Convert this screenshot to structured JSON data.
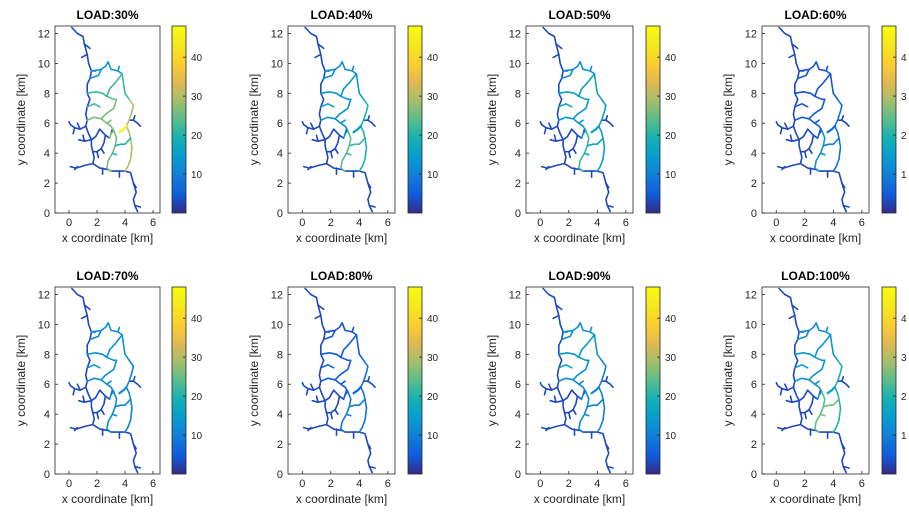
{
  "figure": {
    "background": "#ffffff",
    "colormap": "parula",
    "network_line_color_low": "#3b2f8f",
    "axis_color": "#262626"
  },
  "chart_data": [
    {
      "type": "heatmap",
      "title": "LOAD:30%",
      "xlabel": "x coordinate [km]",
      "ylabel": "y coordinate [km]",
      "xlim": [
        -1,
        6.5
      ],
      "ylim": [
        0,
        12.5
      ],
      "xticks": [
        0,
        2,
        4,
        6
      ],
      "yticks": [
        0,
        2,
        4,
        6,
        8,
        10,
        12
      ],
      "colorbar": {
        "min": 0,
        "max": 48,
        "ticks": [
          10,
          20,
          30,
          40
        ],
        "tick_labels": [
          "10",
          "20",
          "30",
          "40"
        ]
      },
      "segment_values": {
        "trunk": 3,
        "west_branches": 3,
        "east_tail": 3,
        "loop_upper": 14,
        "loop_middle": 22,
        "loop_lower": 26,
        "loop_east": 30,
        "loop_south": 26,
        "spur_south": 20,
        "hot_junction": 46
      }
    },
    {
      "type": "heatmap",
      "title": "LOAD:40%",
      "xlabel": "x coordinate [km]",
      "ylabel": "y coordinate [km]",
      "xlim": [
        -1,
        6.5
      ],
      "ylim": [
        0,
        12.5
      ],
      "xticks": [
        0,
        2,
        4,
        6
      ],
      "yticks": [
        0,
        2,
        4,
        6,
        8,
        10,
        12
      ],
      "colorbar": {
        "min": 0,
        "max": 48,
        "ticks": [
          10,
          20,
          30,
          40
        ],
        "tick_labels": [
          "10",
          "20",
          "30",
          "40"
        ]
      },
      "segment_values": {
        "trunk": 3,
        "west_branches": 3,
        "east_tail": 3,
        "loop_upper": 12,
        "loop_middle": 14,
        "loop_lower": 13,
        "loop_east": 20,
        "loop_south": 24,
        "spur_south": 22,
        "hot_junction": 14
      }
    },
    {
      "type": "heatmap",
      "title": "LOAD:50%",
      "xlabel": "x coordinate [km]",
      "ylabel": "y coordinate [km]",
      "xlim": [
        -1,
        6.5
      ],
      "ylim": [
        0,
        12.5
      ],
      "xticks": [
        0,
        2,
        4,
        6
      ],
      "yticks": [
        0,
        2,
        4,
        6,
        8,
        10,
        12
      ],
      "colorbar": {
        "min": 0,
        "max": 48,
        "ticks": [
          10,
          20,
          30,
          40
        ],
        "tick_labels": [
          "10",
          "20",
          "30",
          "40"
        ]
      },
      "segment_values": {
        "trunk": 3,
        "west_branches": 3,
        "east_tail": 3,
        "loop_upper": 12,
        "loop_middle": 16,
        "loop_lower": 14,
        "loop_east": 15,
        "loop_south": 22,
        "spur_south": 16,
        "hot_junction": 16
      }
    },
    {
      "type": "heatmap",
      "title": "LOAD:60%",
      "xlabel": "x coordinate [km]",
      "ylabel": "y coordinate [km]",
      "xlim": [
        -1,
        6.5
      ],
      "ylim": [
        0,
        12.5
      ],
      "xticks": [
        0,
        2,
        4,
        6
      ],
      "yticks": [
        0,
        2,
        4,
        6,
        8,
        10,
        12
      ],
      "colorbar": {
        "min": 0,
        "max": 4.8,
        "ticks": [
          1,
          2,
          3,
          4
        ],
        "tick_labels": [
          "1",
          "2",
          "3",
          "4"
        ]
      },
      "segment_values": {
        "trunk": 0.3,
        "west_branches": 0.3,
        "east_tail": 0.3,
        "loop_upper": 0.4,
        "loop_middle": 0.4,
        "loop_lower": 0.5,
        "loop_east": 0.8,
        "loop_south": 1.4,
        "spur_south": 1.0,
        "hot_junction": 0.8
      }
    },
    {
      "type": "heatmap",
      "title": "LOAD:70%",
      "xlabel": "x coordinate [km]",
      "ylabel": "y coordinate [km]",
      "xlim": [
        -1,
        6.5
      ],
      "ylim": [
        0,
        12.5
      ],
      "xticks": [
        0,
        2,
        4,
        6
      ],
      "yticks": [
        0,
        2,
        4,
        6,
        8,
        10,
        12
      ],
      "colorbar": {
        "min": 0,
        "max": 48,
        "ticks": [
          10,
          20,
          30,
          40
        ],
        "tick_labels": [
          "10",
          "20",
          "30",
          "40"
        ]
      },
      "segment_values": {
        "trunk": 3,
        "west_branches": 3,
        "east_tail": 3,
        "loop_upper": 12,
        "loop_middle": 13,
        "loop_lower": 12,
        "loop_east": 10,
        "loop_south": 12,
        "spur_south": 11,
        "hot_junction": 12
      }
    },
    {
      "type": "heatmap",
      "title": "LOAD:80%",
      "xlabel": "x coordinate [km]",
      "ylabel": "y coordinate [km]",
      "xlim": [
        -1,
        6.5
      ],
      "ylim": [
        0,
        12.5
      ],
      "xticks": [
        0,
        2,
        4,
        6
      ],
      "yticks": [
        0,
        2,
        4,
        6,
        8,
        10,
        12
      ],
      "colorbar": {
        "min": 0,
        "max": 48,
        "ticks": [
          10,
          20,
          30,
          40
        ],
        "tick_labels": [
          "10",
          "20",
          "30",
          "40"
        ]
      },
      "segment_values": {
        "trunk": 3,
        "west_branches": 3,
        "east_tail": 3,
        "loop_upper": 4,
        "loop_middle": 5,
        "loop_lower": 5,
        "loop_east": 8,
        "loop_south": 9,
        "spur_south": 10,
        "hot_junction": 6
      }
    },
    {
      "type": "heatmap",
      "title": "LOAD:90%",
      "xlabel": "x coordinate [km]",
      "ylabel": "y coordinate [km]",
      "xlim": [
        -1,
        6.5
      ],
      "ylim": [
        0,
        12.5
      ],
      "xticks": [
        0,
        2,
        4,
        6
      ],
      "yticks": [
        0,
        2,
        4,
        6,
        8,
        10,
        12
      ],
      "colorbar": {
        "min": 0,
        "max": 48,
        "ticks": [
          10,
          20,
          30,
          40
        ],
        "tick_labels": [
          "10",
          "20",
          "30",
          "40"
        ]
      },
      "segment_values": {
        "trunk": 3,
        "west_branches": 3,
        "east_tail": 3,
        "loop_upper": 12,
        "loop_middle": 14,
        "loop_lower": 12,
        "loop_east": 10,
        "loop_south": 12,
        "spur_south": 10,
        "hot_junction": 12
      }
    },
    {
      "type": "heatmap",
      "title": "LOAD:100%",
      "xlabel": "x coordinate [km]",
      "ylabel": "y coordinate [km]",
      "xlim": [
        -1,
        6.5
      ],
      "ylim": [
        0,
        12.5
      ],
      "xticks": [
        0,
        2,
        4,
        6
      ],
      "yticks": [
        0,
        2,
        4,
        6,
        8,
        10,
        12
      ],
      "colorbar": {
        "min": 0,
        "max": 4.8,
        "ticks": [
          1,
          2,
          3,
          4
        ],
        "tick_labels": [
          "1",
          "2",
          "3",
          "4"
        ]
      },
      "segment_values": {
        "trunk": 0.3,
        "west_branches": 0.3,
        "east_tail": 0.3,
        "loop_upper": 1.2,
        "loop_middle": 1.4,
        "loop_lower": 1.3,
        "loop_east": 2.0,
        "loop_south": 2.4,
        "spur_south": 2.6,
        "hot_junction": 1.6
      }
    }
  ]
}
